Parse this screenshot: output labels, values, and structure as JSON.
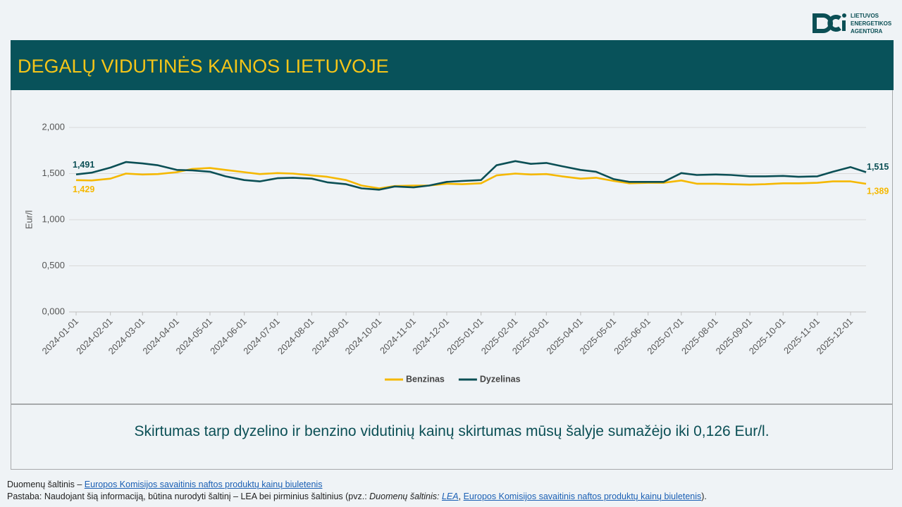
{
  "header": {
    "title": "DEGALŲ VIDUTINĖS KAINOS LIETUVOJE"
  },
  "logo": {
    "lines": [
      "LIETUVOS",
      "ENERGETIKOS",
      "AGENTŪRA"
    ]
  },
  "chart_data": {
    "type": "line",
    "y_label": "Eur/l",
    "x": [
      "2024-01-01",
      "2024-01-15",
      "2024-02-01",
      "2024-02-15",
      "2024-03-01",
      "2024-03-15",
      "2024-04-01",
      "2024-04-15",
      "2024-05-01",
      "2024-05-15",
      "2024-06-01",
      "2024-06-15",
      "2024-07-01",
      "2024-07-15",
      "2024-08-01",
      "2024-08-15",
      "2024-09-01",
      "2024-09-15",
      "2024-10-01",
      "2024-10-15",
      "2024-11-01",
      "2024-11-15",
      "2024-12-01",
      "2024-12-15",
      "2025-01-01",
      "2025-01-15",
      "2025-02-01",
      "2025-02-15",
      "2025-03-01",
      "2025-03-15",
      "2025-04-01",
      "2025-04-15",
      "2025-05-01",
      "2025-05-15",
      "2025-06-01",
      "2025-06-15",
      "2025-07-01",
      "2025-07-15",
      "2025-08-01",
      "2025-08-15",
      "2025-09-01",
      "2025-09-15",
      "2025-10-01",
      "2025-10-15",
      "2025-11-01",
      "2025-11-15",
      "2025-12-01",
      "2025-12-15"
    ],
    "series": [
      {
        "name": "Benzinas",
        "color": "#f5b800",
        "values": [
          1429,
          1425,
          1445,
          1500,
          1490,
          1495,
          1515,
          1550,
          1560,
          1540,
          1515,
          1495,
          1505,
          1500,
          1480,
          1465,
          1430,
          1370,
          1340,
          1365,
          1370,
          1370,
          1390,
          1385,
          1395,
          1480,
          1500,
          1490,
          1495,
          1470,
          1445,
          1455,
          1420,
          1395,
          1400,
          1400,
          1425,
          1390,
          1390,
          1385,
          1380,
          1385,
          1395,
          1395,
          1400,
          1415,
          1415,
          1389
        ],
        "value_labels": [
          "1,429",
          null,
          null,
          null,
          null,
          null,
          null,
          null,
          null,
          null,
          null,
          null,
          null,
          null,
          null,
          null,
          null,
          null,
          null,
          null,
          null,
          null,
          null,
          null,
          null,
          null,
          null,
          null,
          null,
          null,
          null,
          null,
          null,
          null,
          null,
          null,
          null,
          null,
          null,
          null,
          null,
          null,
          null,
          null,
          null,
          null,
          null,
          "1,389"
        ]
      },
      {
        "name": "Dyzelinas",
        "color": "#0b4f55",
        "values": [
          1491,
          1510,
          1565,
          1625,
          1610,
          1590,
          1540,
          1535,
          1520,
          1470,
          1430,
          1415,
          1450,
          1455,
          1445,
          1405,
          1385,
          1340,
          1325,
          1360,
          1350,
          1370,
          1410,
          1420,
          1430,
          1590,
          1635,
          1605,
          1615,
          1580,
          1540,
          1520,
          1440,
          1410,
          1410,
          1410,
          1505,
          1485,
          1490,
          1485,
          1470,
          1470,
          1475,
          1465,
          1470,
          1520,
          1570,
          1515
        ],
        "value_labels": [
          "1,491",
          null,
          null,
          null,
          null,
          null,
          null,
          null,
          null,
          null,
          null,
          null,
          null,
          null,
          null,
          null,
          null,
          null,
          null,
          null,
          null,
          null,
          null,
          null,
          null,
          null,
          null,
          null,
          null,
          null,
          null,
          null,
          null,
          null,
          null,
          null,
          null,
          null,
          null,
          null,
          null,
          null,
          null,
          null,
          null,
          null,
          null,
          "1,515"
        ]
      }
    ],
    "xlim": [
      "2024-01-01",
      "2025-12-15"
    ],
    "xticks": [
      "2024-01-01",
      "2024-02-01",
      "2024-03-01",
      "2024-04-01",
      "2024-05-01",
      "2024-06-01",
      "2024-07-01",
      "2024-08-01",
      "2024-09-01",
      "2024-10-01",
      "2024-11-01",
      "2024-12-01",
      "2025-01-01",
      "2025-02-01",
      "2025-03-01",
      "2025-04-01",
      "2025-05-01",
      "2025-06-01",
      "2025-07-01",
      "2025-08-01",
      "2025-09-01",
      "2025-10-01",
      "2025-11-01",
      "2025-12-01"
    ],
    "ylim": [
      0,
      2000
    ],
    "yticks": [
      {
        "value": 0,
        "label": "0,000"
      },
      {
        "value": 500,
        "label": "0,500"
      },
      {
        "value": 1000,
        "label": "1,000"
      },
      {
        "value": 1500,
        "label": "1,500"
      },
      {
        "value": 2000,
        "label": "2,000"
      }
    ],
    "grid": true,
    "legend": "bottom"
  },
  "note": "Skirtumas tarp dyzelino ir benzino vidutinių kainų skirtumas mūsų šalyje sumažėjo iki 0,126 Eur/l.",
  "footer": {
    "source": {
      "prefix": "Duomenų šaltinis – ",
      "link": "Europos Komisijos savaitinis naftos produktų kainų biuletenis"
    },
    "remark": {
      "prefix": "Pastaba: Naudojant šią informaciją, būtina nurodyti šaltinį – LEA bei pirminius šaltinius (pvz.: ",
      "italic": "Duomenų šaltinis: ",
      "link1": "LEA",
      "sep": ", ",
      "link2": "Europos Komisijos savaitinis naftos produktų kainų biuletenis",
      "suffix": ")."
    }
  }
}
